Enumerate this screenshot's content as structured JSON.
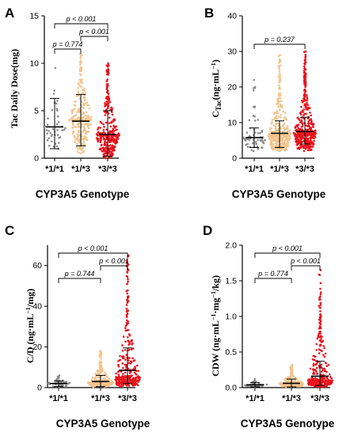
{
  "colors": {
    "genotype_1_1": "#8c8c8c",
    "genotype_1_3": "#f2c48d",
    "genotype_3_3": "#e8141c",
    "axis": "#000000"
  },
  "chart_data": [
    {
      "panel": "A",
      "type": "scatter",
      "xlabel": "CYP3A5 Genotype",
      "ylabel": "Tac Daily Dose(mg)",
      "categories": [
        "*1/*1",
        "*1/*3",
        "*3/*3"
      ],
      "ylim": [
        0,
        15
      ],
      "yticks": [
        0,
        5,
        10,
        15
      ],
      "ytick_labels": [
        "0",
        "5",
        "10",
        "15"
      ],
      "series": [
        {
          "category": "*1/*1",
          "n": 45,
          "min": 1,
          "max": 9.5,
          "median": 3.3,
          "q1": 2.2,
          "q3": 4.5,
          "mean": 3.3,
          "sd_low": 1,
          "sd_high": 6.3
        },
        {
          "category": "*1/*3",
          "n": 260,
          "min": 0.5,
          "max": 11,
          "median": 4,
          "q1": 2.5,
          "q3": 5.5,
          "mean": 3.9,
          "sd_low": 1.3,
          "sd_high": 6.7
        },
        {
          "category": "*3/*3",
          "n": 320,
          "min": 0,
          "max": 10,
          "median": 2.4,
          "q1": 1.5,
          "q3": 3.5,
          "mean": 2.5,
          "sd_low": 0.2,
          "sd_high": 5
        }
      ],
      "brackets": [
        {
          "from": 0,
          "to": 1,
          "label": "p = 0.774",
          "level": 1
        },
        {
          "from": 1,
          "to": 2,
          "label": "p < 0.001",
          "level": 2
        },
        {
          "from": 0,
          "to": 2,
          "label": "p < 0.001",
          "level": 3
        }
      ]
    },
    {
      "panel": "B",
      "type": "scatter",
      "xlabel": "CYP3A5 Genotype",
      "ylabel": "C_Tac(ng·mL⁻¹)",
      "categories": [
        "*1/*1",
        "*1/*3",
        "*3/*3"
      ],
      "ylim": [
        0,
        40
      ],
      "yticks": [
        0,
        10,
        20,
        30,
        40
      ],
      "ytick_labels": [
        "0",
        "10",
        "20",
        "30",
        "40"
      ],
      "series": [
        {
          "category": "*1/*1",
          "n": 60,
          "min": 2,
          "max": 22,
          "median": 5.5,
          "q1": 4.5,
          "q3": 7,
          "mean": 5.8,
          "sd_low": 3,
          "sd_high": 8.5
        },
        {
          "category": "*1/*3",
          "n": 380,
          "min": 2,
          "max": 29,
          "median": 6.5,
          "q1": 5,
          "q3": 8.5,
          "mean": 7,
          "sd_low": 3,
          "sd_high": 10.5
        },
        {
          "category": "*3/*3",
          "n": 420,
          "min": 2,
          "max": 30,
          "median": 7,
          "q1": 5.5,
          "q3": 9,
          "mean": 7.5,
          "sd_low": 4,
          "sd_high": 11.5
        }
      ],
      "brackets": [
        {
          "from": 0,
          "to": 2,
          "label": "p = 0.237",
          "level": 1
        }
      ]
    },
    {
      "panel": "C",
      "type": "scatter",
      "xlabel": "CYP3A5 Genotype",
      "ylabel": "C/D (ng·mL⁻¹/mg)",
      "categories": [
        "*1/*1",
        "*1/*3",
        "*3/*3"
      ],
      "ylim": [
        0,
        70
      ],
      "yticks": [
        0,
        20,
        40,
        60
      ],
      "ytick_labels": [
        "0",
        "20",
        "40",
        "60"
      ],
      "series": [
        {
          "category": "*1/*1",
          "n": 45,
          "min": 0.3,
          "max": 6,
          "median": 2,
          "q1": 1.5,
          "q3": 2.7,
          "mean": 2,
          "sd_low": 0.5,
          "sd_high": 3.2
        },
        {
          "category": "*1/*3",
          "n": 260,
          "min": 0.3,
          "max": 18,
          "median": 2.5,
          "q1": 1.5,
          "q3": 4,
          "mean": 3,
          "sd_low": 0.5,
          "sd_high": 6
        },
        {
          "category": "*3/*3",
          "n": 320,
          "min": 0.5,
          "max": 65,
          "median": 5,
          "q1": 3,
          "q3": 10,
          "mean": 8.5,
          "sd_low": 2,
          "sd_high": 19.5
        }
      ],
      "brackets": [
        {
          "from": 0,
          "to": 1,
          "label": "p = 0.744",
          "level": 1
        },
        {
          "from": 1,
          "to": 2,
          "label": "p < 0.001",
          "level": 2
        },
        {
          "from": 0,
          "to": 2,
          "label": "p < 0.001",
          "level": 3
        }
      ]
    },
    {
      "panel": "D",
      "type": "scatter",
      "xlabel": "CYP3A5 Genotype",
      "ylabel": "CDW (ng·mL⁻¹·mg⁻¹/kg)",
      "categories": [
        "*1/*1",
        "*1/*3",
        "*3/*3"
      ],
      "ylim": [
        0,
        2.0
      ],
      "yticks": [
        0,
        0.5,
        1.0,
        1.5,
        2.0
      ],
      "ytick_labels": [
        "0.0",
        "0.5",
        "1.0",
        "1.5",
        "2.0"
      ],
      "series": [
        {
          "category": "*1/*1",
          "n": 45,
          "min": 0.01,
          "max": 0.12,
          "median": 0.04,
          "q1": 0.03,
          "q3": 0.055,
          "mean": 0.04,
          "sd_low": 0.01,
          "sd_high": 0.07
        },
        {
          "category": "*1/*3",
          "n": 260,
          "min": 0.01,
          "max": 0.32,
          "median": 0.05,
          "q1": 0.03,
          "q3": 0.08,
          "mean": 0.06,
          "sd_low": 0.01,
          "sd_high": 0.12
        },
        {
          "category": "*3/*3",
          "n": 320,
          "min": 0.01,
          "max": 1.65,
          "median": 0.1,
          "q1": 0.06,
          "q3": 0.2,
          "mean": 0.16,
          "sd_low": 0.03,
          "sd_high": 0.37
        }
      ],
      "brackets": [
        {
          "from": 0,
          "to": 1,
          "label": "p = 0.774",
          "level": 1
        },
        {
          "from": 1,
          "to": 2,
          "label": "p < 0.001",
          "level": 2
        },
        {
          "from": 0,
          "to": 2,
          "label": "p < 0.001",
          "level": 3
        }
      ]
    }
  ]
}
